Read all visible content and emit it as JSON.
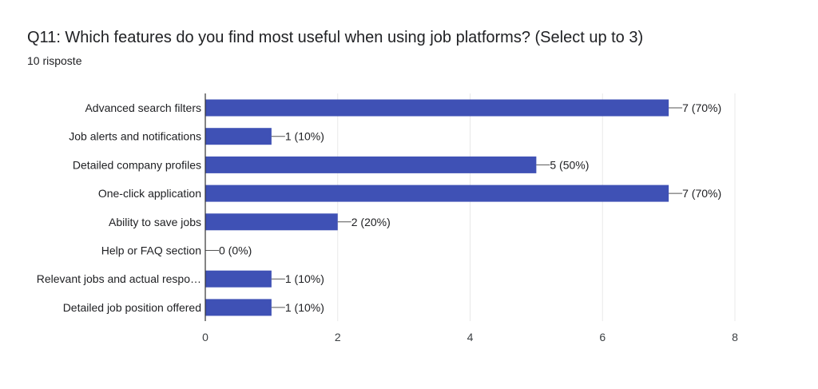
{
  "header": {
    "title": "Q11: Which features do you find most useful when using job platforms? (Select up to 3)",
    "subtitle": "10 risposte"
  },
  "colors": {
    "bar": "#3f51b5",
    "grid": "#e8e8e8",
    "axis": "#333333"
  },
  "chart_data": {
    "type": "bar",
    "orientation": "horizontal",
    "title": "Q11: Which features do you find most useful when using job platforms? (Select up to 3)",
    "subtitle": "10 risposte",
    "categories": [
      "Advanced search filters",
      "Job alerts and notifications",
      "Detailed company profiles",
      "One-click application",
      "Ability to save jobs",
      "Help or FAQ section",
      "Relevant jobs and actual respo…",
      "Detailed job position offered"
    ],
    "values": [
      7,
      1,
      5,
      7,
      2,
      0,
      1,
      1
    ],
    "value_labels": [
      "7 (70%)",
      "1 (10%)",
      "5 (50%)",
      "7 (70%)",
      "2 (20%)",
      "0 (0%)",
      "1 (10%)",
      "1 (10%)"
    ],
    "xlim": [
      0,
      8
    ],
    "xticks": [
      0,
      2,
      4,
      6,
      8
    ],
    "grid": true
  }
}
